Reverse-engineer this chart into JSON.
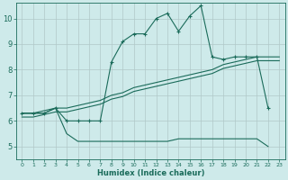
{
  "xlabel": "Humidex (Indice chaleur)",
  "background_color": "#ceeaea",
  "grid_color": "#b0c8c8",
  "line_color": "#1a6b5a",
  "xlim": [
    -0.5,
    23.5
  ],
  "ylim": [
    4.5,
    10.6
  ],
  "x_ticks": [
    0,
    1,
    2,
    3,
    4,
    5,
    6,
    7,
    8,
    9,
    10,
    11,
    12,
    13,
    14,
    15,
    16,
    17,
    18,
    19,
    20,
    21,
    22,
    23
  ],
  "y_ticks": [
    5,
    6,
    7,
    8,
    9,
    10
  ],
  "series1_x": [
    0,
    1,
    2,
    3,
    4,
    5,
    6,
    7,
    8,
    9,
    10,
    11,
    12,
    13,
    14,
    15,
    16,
    17,
    18,
    19,
    20,
    21,
    22
  ],
  "series1_y": [
    6.3,
    6.3,
    6.3,
    6.5,
    6.0,
    6.0,
    6.0,
    6.0,
    8.3,
    9.1,
    9.4,
    9.4,
    10.0,
    10.2,
    9.5,
    10.1,
    10.5,
    8.5,
    8.4,
    8.5,
    8.5,
    8.5,
    6.5
  ],
  "series2_x": [
    0,
    1,
    2,
    3,
    4,
    5,
    6,
    7,
    8,
    9,
    10,
    11,
    12,
    13,
    14,
    15,
    16,
    17,
    18,
    19,
    20,
    21,
    22,
    23
  ],
  "series2_y": [
    6.3,
    6.3,
    6.4,
    6.5,
    6.5,
    6.6,
    6.7,
    6.8,
    7.0,
    7.1,
    7.3,
    7.4,
    7.5,
    7.6,
    7.7,
    7.8,
    7.9,
    8.0,
    8.2,
    8.3,
    8.4,
    8.5,
    8.5,
    8.5
  ],
  "series2b_x": [
    0,
    1,
    2,
    3,
    4,
    5,
    6,
    7,
    8,
    9,
    10,
    11,
    12,
    13,
    14,
    15,
    16,
    17,
    18,
    19,
    20,
    21,
    22,
    23
  ],
  "series2b_y": [
    6.15,
    6.15,
    6.25,
    6.35,
    6.35,
    6.45,
    6.55,
    6.65,
    6.85,
    6.95,
    7.15,
    7.25,
    7.35,
    7.45,
    7.55,
    7.65,
    7.75,
    7.85,
    8.05,
    8.15,
    8.25,
    8.35,
    8.35,
    8.35
  ],
  "series3_x": [
    0,
    1,
    2,
    3,
    4,
    5,
    6,
    7,
    8,
    9,
    10,
    11,
    12,
    13,
    14,
    15,
    16,
    17,
    18,
    19,
    20,
    21,
    22
  ],
  "series3_y": [
    6.3,
    6.3,
    6.3,
    6.5,
    5.5,
    5.2,
    5.2,
    5.2,
    5.2,
    5.2,
    5.2,
    5.2,
    5.2,
    5.2,
    5.3,
    5.3,
    5.3,
    5.3,
    5.3,
    5.3,
    5.3,
    5.3,
    5.0
  ]
}
